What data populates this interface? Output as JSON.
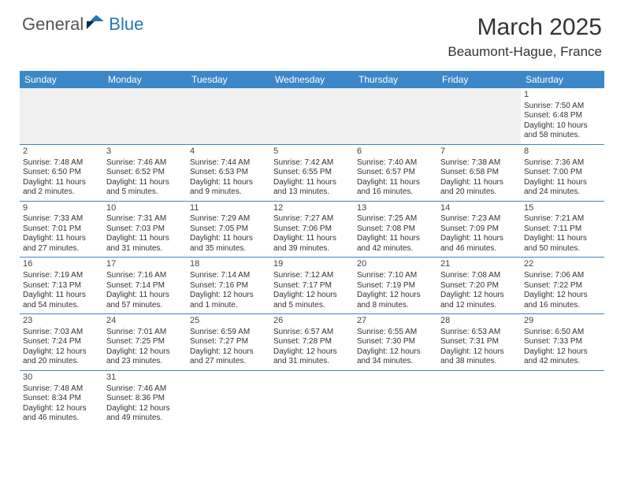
{
  "logo": {
    "text1": "General",
    "text2": "Blue"
  },
  "title": "March 2025",
  "location": "Beaumont-Hague, France",
  "header_bg": "#3b87c8",
  "border_color": "#3b87c8",
  "dayHeaders": [
    "Sunday",
    "Monday",
    "Tuesday",
    "Wednesday",
    "Thursday",
    "Friday",
    "Saturday"
  ],
  "weeks": [
    [
      null,
      null,
      null,
      null,
      null,
      null,
      {
        "n": "1",
        "sr": "7:50 AM",
        "ss": "6:48 PM",
        "dl": "10 hours and 58 minutes."
      }
    ],
    [
      {
        "n": "2",
        "sr": "7:48 AM",
        "ss": "6:50 PM",
        "dl": "11 hours and 2 minutes."
      },
      {
        "n": "3",
        "sr": "7:46 AM",
        "ss": "6:52 PM",
        "dl": "11 hours and 5 minutes."
      },
      {
        "n": "4",
        "sr": "7:44 AM",
        "ss": "6:53 PM",
        "dl": "11 hours and 9 minutes."
      },
      {
        "n": "5",
        "sr": "7:42 AM",
        "ss": "6:55 PM",
        "dl": "11 hours and 13 minutes."
      },
      {
        "n": "6",
        "sr": "7:40 AM",
        "ss": "6:57 PM",
        "dl": "11 hours and 16 minutes."
      },
      {
        "n": "7",
        "sr": "7:38 AM",
        "ss": "6:58 PM",
        "dl": "11 hours and 20 minutes."
      },
      {
        "n": "8",
        "sr": "7:36 AM",
        "ss": "7:00 PM",
        "dl": "11 hours and 24 minutes."
      }
    ],
    [
      {
        "n": "9",
        "sr": "7:33 AM",
        "ss": "7:01 PM",
        "dl": "11 hours and 27 minutes."
      },
      {
        "n": "10",
        "sr": "7:31 AM",
        "ss": "7:03 PM",
        "dl": "11 hours and 31 minutes."
      },
      {
        "n": "11",
        "sr": "7:29 AM",
        "ss": "7:05 PM",
        "dl": "11 hours and 35 minutes."
      },
      {
        "n": "12",
        "sr": "7:27 AM",
        "ss": "7:06 PM",
        "dl": "11 hours and 39 minutes."
      },
      {
        "n": "13",
        "sr": "7:25 AM",
        "ss": "7:08 PM",
        "dl": "11 hours and 42 minutes."
      },
      {
        "n": "14",
        "sr": "7:23 AM",
        "ss": "7:09 PM",
        "dl": "11 hours and 46 minutes."
      },
      {
        "n": "15",
        "sr": "7:21 AM",
        "ss": "7:11 PM",
        "dl": "11 hours and 50 minutes."
      }
    ],
    [
      {
        "n": "16",
        "sr": "7:19 AM",
        "ss": "7:13 PM",
        "dl": "11 hours and 54 minutes."
      },
      {
        "n": "17",
        "sr": "7:16 AM",
        "ss": "7:14 PM",
        "dl": "11 hours and 57 minutes."
      },
      {
        "n": "18",
        "sr": "7:14 AM",
        "ss": "7:16 PM",
        "dl": "12 hours and 1 minute."
      },
      {
        "n": "19",
        "sr": "7:12 AM",
        "ss": "7:17 PM",
        "dl": "12 hours and 5 minutes."
      },
      {
        "n": "20",
        "sr": "7:10 AM",
        "ss": "7:19 PM",
        "dl": "12 hours and 8 minutes."
      },
      {
        "n": "21",
        "sr": "7:08 AM",
        "ss": "7:20 PM",
        "dl": "12 hours and 12 minutes."
      },
      {
        "n": "22",
        "sr": "7:06 AM",
        "ss": "7:22 PM",
        "dl": "12 hours and 16 minutes."
      }
    ],
    [
      {
        "n": "23",
        "sr": "7:03 AM",
        "ss": "7:24 PM",
        "dl": "12 hours and 20 minutes."
      },
      {
        "n": "24",
        "sr": "7:01 AM",
        "ss": "7:25 PM",
        "dl": "12 hours and 23 minutes."
      },
      {
        "n": "25",
        "sr": "6:59 AM",
        "ss": "7:27 PM",
        "dl": "12 hours and 27 minutes."
      },
      {
        "n": "26",
        "sr": "6:57 AM",
        "ss": "7:28 PM",
        "dl": "12 hours and 31 minutes."
      },
      {
        "n": "27",
        "sr": "6:55 AM",
        "ss": "7:30 PM",
        "dl": "12 hours and 34 minutes."
      },
      {
        "n": "28",
        "sr": "6:53 AM",
        "ss": "7:31 PM",
        "dl": "12 hours and 38 minutes."
      },
      {
        "n": "29",
        "sr": "6:50 AM",
        "ss": "7:33 PM",
        "dl": "12 hours and 42 minutes."
      }
    ],
    [
      {
        "n": "30",
        "sr": "7:48 AM",
        "ss": "8:34 PM",
        "dl": "12 hours and 46 minutes."
      },
      {
        "n": "31",
        "sr": "7:46 AM",
        "ss": "8:36 PM",
        "dl": "12 hours and 49 minutes."
      },
      null,
      null,
      null,
      null,
      null
    ]
  ],
  "labels": {
    "sunrise": "Sunrise: ",
    "sunset": "Sunset: ",
    "daylight": "Daylight: "
  }
}
